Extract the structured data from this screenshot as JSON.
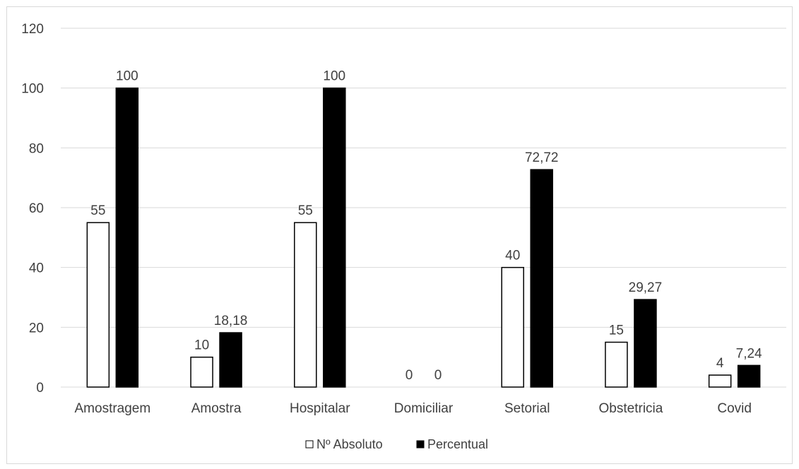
{
  "chart_data": {
    "type": "bar",
    "categories": [
      "Amostragem",
      "Amostra",
      "Hospitalar",
      "Domiciliar",
      "Setorial",
      "Obstetricia",
      "Covid"
    ],
    "series": [
      {
        "name": "Nº Absoluto",
        "values": [
          55,
          10,
          55,
          0,
          40,
          15,
          4
        ],
        "labels": [
          "55",
          "10",
          "55",
          "0",
          "40",
          "15",
          "4"
        ],
        "fill": "#ffffff",
        "stroke": "#000000"
      },
      {
        "name": "Percentual",
        "values": [
          100,
          18.18,
          100,
          0,
          72.72,
          29.27,
          7.24
        ],
        "labels": [
          "100",
          "18,18",
          "100",
          "0",
          "72,72",
          "29,27",
          "7,24"
        ],
        "fill": "#000000",
        "stroke": "#000000"
      }
    ],
    "yticks": [
      "0",
      "20",
      "40",
      "60",
      "80",
      "100",
      "120"
    ],
    "ylim": [
      0,
      120
    ],
    "grid": true,
    "legend_position": "bottom",
    "colors": {
      "gridline": "#d9d9d9",
      "text": "#404040",
      "axis": "#d9d9d9"
    }
  }
}
